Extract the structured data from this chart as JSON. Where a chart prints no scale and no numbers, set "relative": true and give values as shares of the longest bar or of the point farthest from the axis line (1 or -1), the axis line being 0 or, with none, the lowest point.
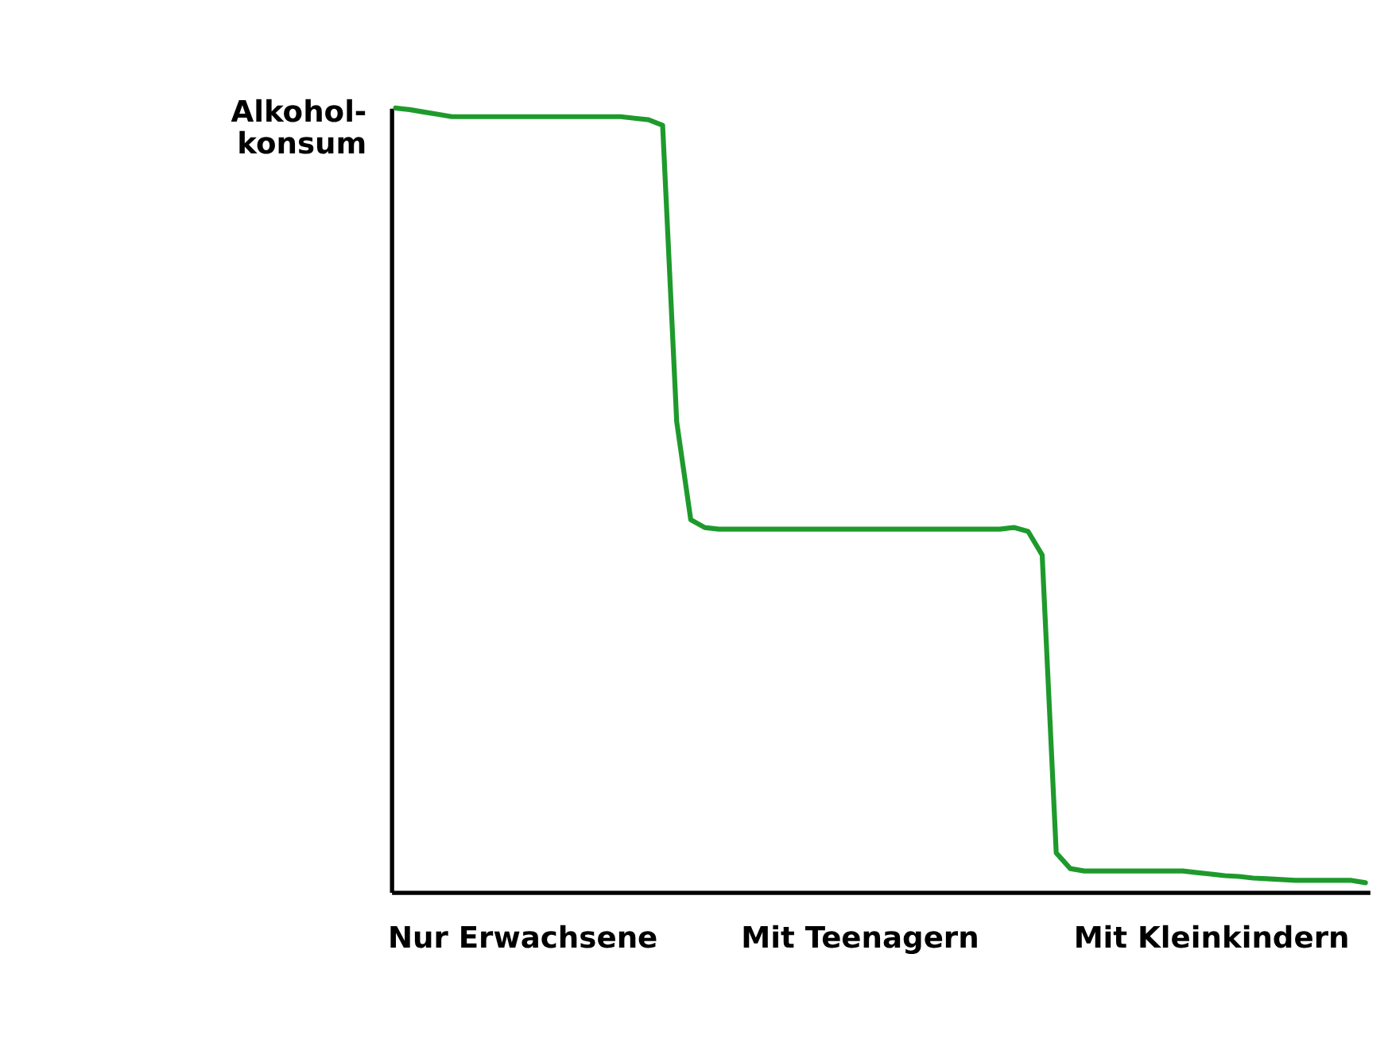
{
  "chart_data": {
    "type": "line",
    "relative": true,
    "ylabel": "Alkohol-\nkonsum",
    "grid": false,
    "marker": "none",
    "line_style": "solid",
    "categories": [
      null,
      null,
      null,
      null,
      null,
      null,
      null,
      null,
      null,
      "Nur Erwachsene",
      null,
      null,
      null,
      null,
      null,
      null,
      null,
      null,
      null,
      null,
      null,
      null,
      null,
      null,
      null,
      null,
      null,
      null,
      null,
      null,
      null,
      null,
      null,
      "Mit Teenagern",
      null,
      null,
      null,
      null,
      null,
      null,
      null,
      null,
      null,
      null,
      null,
      null,
      null,
      null,
      null,
      null,
      null,
      null,
      null,
      null,
      null,
      null,
      null,
      null,
      "Mit Kleinkindern",
      null,
      null,
      null,
      null,
      null,
      null,
      null,
      null,
      null,
      null,
      null
    ],
    "series": [
      {
        "color": "#1e9a2c",
        "values": [
          1.0,
          0.998,
          0.995,
          0.992,
          0.989,
          0.989,
          0.989,
          0.989,
          0.989,
          0.989,
          0.989,
          0.989,
          0.989,
          0.989,
          0.989,
          0.989,
          0.989,
          0.987,
          0.985,
          0.978,
          0.6,
          0.475,
          0.465,
          0.463,
          0.463,
          0.463,
          0.463,
          0.463,
          0.463,
          0.463,
          0.463,
          0.463,
          0.463,
          0.463,
          0.463,
          0.463,
          0.463,
          0.463,
          0.463,
          0.463,
          0.463,
          0.463,
          0.463,
          0.463,
          0.465,
          0.46,
          0.43,
          0.05,
          0.03,
          0.027,
          0.027,
          0.027,
          0.027,
          0.027,
          0.027,
          0.027,
          0.027,
          0.025,
          0.023,
          0.021,
          0.02,
          0.018,
          0.017,
          0.016,
          0.015,
          0.015,
          0.015,
          0.015,
          0.015,
          0.012
        ]
      }
    ]
  }
}
